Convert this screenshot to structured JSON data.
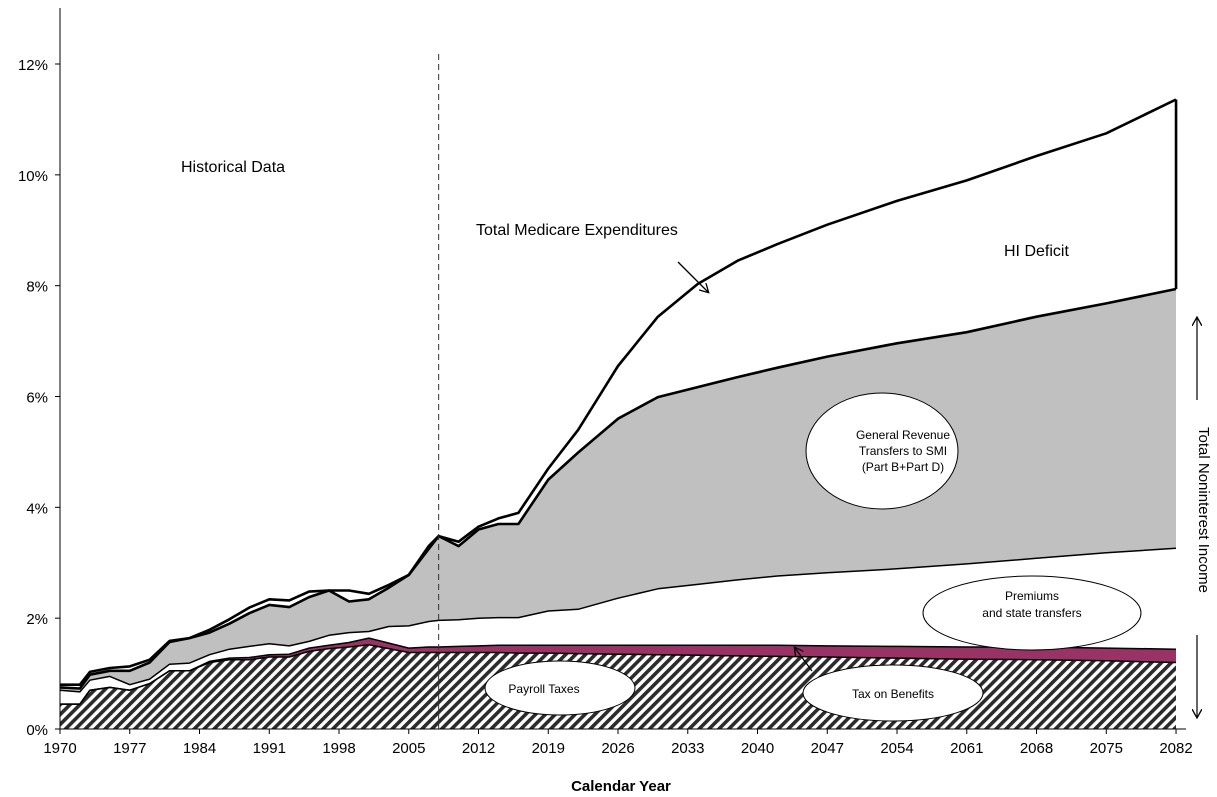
{
  "chart_data": {
    "type": "area",
    "xlabel": "Calendar Year",
    "ylabel": "",
    "xlim": [
      1970,
      2083
    ],
    "ylim": [
      0,
      12
    ],
    "y_ticks": [
      0,
      2,
      4,
      6,
      8,
      10,
      12
    ],
    "y_tick_suffix": "%",
    "x_ticks": [
      1970,
      1977,
      1984,
      1991,
      1998,
      2005,
      2012,
      2019,
      2026,
      2033,
      2040,
      2047,
      2054,
      2061,
      2068,
      2075,
      2082
    ],
    "historical_boundary_year": 2008,
    "grid": false,
    "x": [
      1970,
      1972,
      1973,
      1975,
      1977,
      1979,
      1981,
      1983,
      1985,
      1987,
      1989,
      1991,
      1993,
      1995,
      1997,
      1999,
      2001,
      2003,
      2005,
      2007,
      2008,
      2010,
      2012,
      2014,
      2016,
      2019,
      2022,
      2026,
      2030,
      2034,
      2038,
      2042,
      2047,
      2054,
      2061,
      2068,
      2075,
      2082
    ],
    "series": [
      {
        "name": "Payroll Taxes",
        "color": "#ffffff",
        "pattern": "hatch",
        "values": [
          0.45,
          0.45,
          0.7,
          0.75,
          0.7,
          0.82,
          1.05,
          1.05,
          1.2,
          1.25,
          1.25,
          1.3,
          1.3,
          1.4,
          1.45,
          1.48,
          1.52,
          1.45,
          1.38,
          1.38,
          1.38,
          1.38,
          1.38,
          1.38,
          1.37,
          1.37,
          1.36,
          1.35,
          1.34,
          1.33,
          1.32,
          1.31,
          1.3,
          1.28,
          1.26,
          1.25,
          1.23,
          1.2
        ]
      },
      {
        "name": "Tax on Benefits",
        "color": "#993366",
        "values": [
          0,
          0,
          0,
          0,
          0,
          0,
          0,
          0,
          0.02,
          0.03,
          0.04,
          0.04,
          0.05,
          0.06,
          0.06,
          0.08,
          0.12,
          0.1,
          0.08,
          0.1,
          0.1,
          0.11,
          0.12,
          0.13,
          0.14,
          0.14,
          0.15,
          0.16,
          0.17,
          0.18,
          0.19,
          0.2,
          0.2,
          0.21,
          0.22,
          0.23,
          0.23,
          0.24
        ]
      },
      {
        "name": "Premiums and state transfers",
        "color": "#ffffff",
        "values": [
          0.25,
          0.22,
          0.18,
          0.2,
          0.1,
          0.08,
          0.12,
          0.14,
          0.12,
          0.16,
          0.2,
          0.2,
          0.15,
          0.12,
          0.18,
          0.18,
          0.12,
          0.3,
          0.4,
          0.46,
          0.48,
          0.48,
          0.5,
          0.5,
          0.5,
          0.62,
          0.65,
          0.85,
          1.02,
          1.1,
          1.18,
          1.25,
          1.32,
          1.4,
          1.5,
          1.6,
          1.72,
          1.82
        ]
      },
      {
        "name": "General Revenue Transfers to SMI (Part B+Part D)",
        "color": "#c0c0c0",
        "values": [
          0.05,
          0.06,
          0.1,
          0.1,
          0.25,
          0.3,
          0.4,
          0.45,
          0.4,
          0.46,
          0.6,
          0.7,
          0.7,
          0.8,
          0.81,
          0.56,
          0.58,
          0.7,
          0.92,
          1.36,
          1.52,
          1.33,
          1.6,
          1.69,
          1.69,
          2.37,
          2.83,
          3.24,
          3.46,
          3.56,
          3.66,
          3.76,
          3.9,
          4.07,
          4.18,
          4.36,
          4.5,
          4.68
        ]
      },
      {
        "name": "HI Deficit",
        "color": "#ffffff",
        "values": [
          0.05,
          0.08,
          0.05,
          0.05,
          0.08,
          0.05,
          0.02,
          0,
          0.05,
          0.08,
          0.1,
          0.1,
          0.12,
          0.1,
          0,
          0.2,
          0.1,
          0.05,
          0,
          -0.05,
          0,
          0.08,
          0.05,
          0.1,
          0.2,
          0.2,
          0.41,
          0.95,
          1.45,
          1.86,
          2.1,
          2.23,
          2.38,
          2.57,
          2.74,
          2.9,
          3.07,
          3.42
        ]
      }
    ],
    "total_expenditures": [
      0.8,
      0.8,
      1.03,
      1.1,
      1.13,
      1.25,
      1.59,
      1.64,
      1.79,
      1.98,
      2.19,
      2.34,
      2.32,
      2.48,
      2.5,
      2.5,
      2.44,
      2.6,
      2.78,
      3.25,
      3.48,
      3.38,
      3.65,
      3.8,
      3.9,
      4.7,
      5.4,
      6.55,
      7.44,
      8.03,
      8.45,
      8.75,
      9.1,
      9.53,
      9.9,
      10.34,
      10.75,
      11.36
    ],
    "annotations": {
      "historical": "Historical Data",
      "total_medicare": "Total Medicare Expenditures",
      "hi_deficit": "HI Deficit",
      "general_revenue": [
        "General Revenue",
        "Transfers to SMI",
        "(Part B+Part D)"
      ],
      "premiums": [
        "Premiums",
        "and state transfers"
      ],
      "payroll": "Payroll Taxes",
      "tax_benefits": "Tax on Benefits",
      "total_noninterest": "Total Noninterest Income"
    }
  }
}
